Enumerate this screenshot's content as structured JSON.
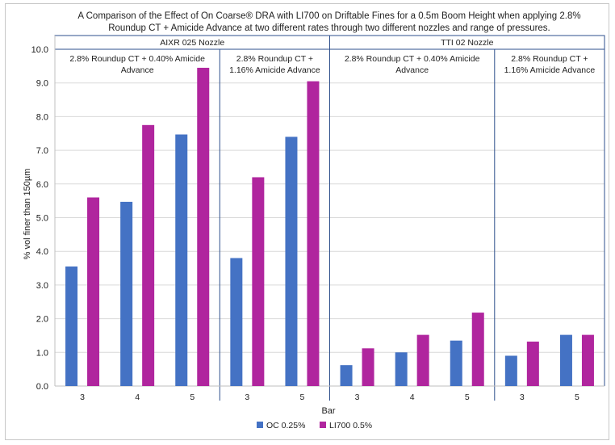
{
  "colors": {
    "series_oc": "#4472C4",
    "series_li700": "#B0259E",
    "divider": "#2E4F8C",
    "grid": "#d9d9d9"
  },
  "chart_data": {
    "type": "bar",
    "title_lines": [
      "A Comparison of the Effect of On Coarse® DRA with LI700 on Driftable Fines for a 0.5m Boom Height when applying 2.8%",
      "Roundup CT + Amicide Advance at two different rates through two different nozzles and range of pressures."
    ],
    "xlabel": "Bar",
    "ylabel": "% vol finer than 150µm",
    "ylim": [
      0,
      10
    ],
    "yticks": [
      "0.0",
      "1.0",
      "2.0",
      "3.0",
      "4.0",
      "5.0",
      "6.0",
      "7.0",
      "8.0",
      "9.0",
      "10.0"
    ],
    "grid": true,
    "legend_position": "bottom",
    "nozzles": [
      {
        "name": "AIXR 025 Nozzle"
      },
      {
        "name": "TTI 02 Nozzle"
      }
    ],
    "panels": [
      {
        "nozzle": 0,
        "label_lines": [
          "2.8% Roundup CT + 0.40% Amicide",
          "Advance"
        ]
      },
      {
        "nozzle": 0,
        "label_lines": [
          "2.8% Roundup CT +",
          "1.16% Amicide Advance"
        ]
      },
      {
        "nozzle": 1,
        "label_lines": [
          "2.8% Roundup CT + 0.40% Amicide",
          "Advance"
        ]
      },
      {
        "nozzle": 1,
        "label_lines": [
          "2.8% Roundup CT +",
          "1.16% Amicide Advance"
        ]
      }
    ],
    "categories": [
      "3",
      "4",
      "5",
      "3",
      "5",
      "3",
      "4",
      "5",
      "3",
      "5"
    ],
    "category_panel": [
      0,
      0,
      0,
      1,
      1,
      2,
      2,
      2,
      3,
      3
    ],
    "series": [
      {
        "name": "OC 0.25%",
        "values": [
          3.55,
          5.47,
          7.47,
          3.8,
          7.4,
          0.62,
          1.0,
          1.35,
          0.9,
          1.52
        ]
      },
      {
        "name": "LI700 0.5%",
        "values": [
          5.6,
          7.75,
          9.45,
          6.2,
          9.05,
          1.12,
          1.52,
          2.18,
          1.32,
          1.52
        ]
      }
    ]
  }
}
